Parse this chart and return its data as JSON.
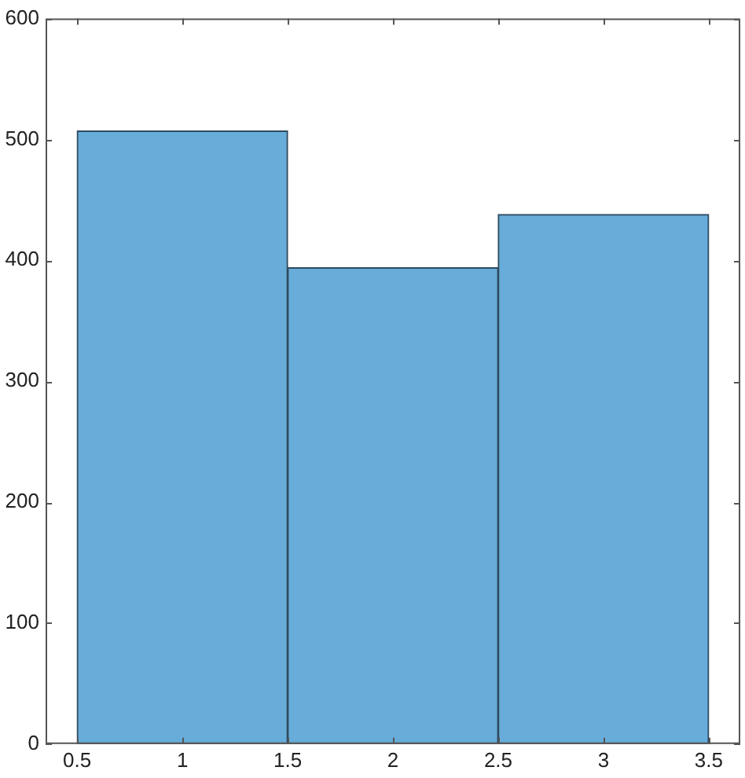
{
  "chart_data": {
    "type": "histogram",
    "bins": [
      0.5,
      1.5,
      2.5,
      3.5
    ],
    "values": [
      507,
      394,
      438
    ],
    "color": "#68acd9",
    "xlim": [
      0.35,
      3.65
    ],
    "xticks": [
      0.5,
      1,
      1.5,
      2,
      2.5,
      3,
      3.5
    ],
    "ylim": [
      0,
      600
    ],
    "yticks": [
      0,
      100,
      200,
      300,
      400,
      500,
      600
    ],
    "grid": false,
    "legend": false
  }
}
